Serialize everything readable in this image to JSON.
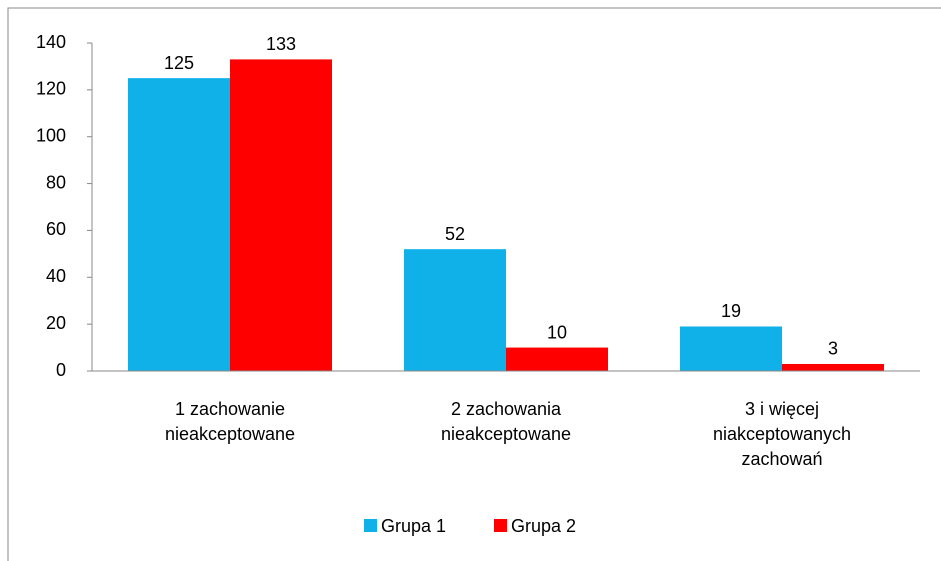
{
  "chart_data": {
    "type": "bar",
    "categories": [
      "1 zachowanie nieakceptowane",
      "2 zachowania nieakceptowane",
      "3 i więcej niakceptowanych zachowań"
    ],
    "series": [
      {
        "name": "Grupa 1",
        "color": "#10b0e8",
        "values": [
          125,
          52,
          19
        ]
      },
      {
        "name": "Grupa 2",
        "color": "#ff0000",
        "values": [
          133,
          10,
          3
        ]
      }
    ],
    "ylim": [
      0,
      140
    ],
    "yticks": [
      0,
      20,
      40,
      60,
      80,
      100,
      120,
      140
    ],
    "grid": false,
    "legend": "bottom"
  }
}
